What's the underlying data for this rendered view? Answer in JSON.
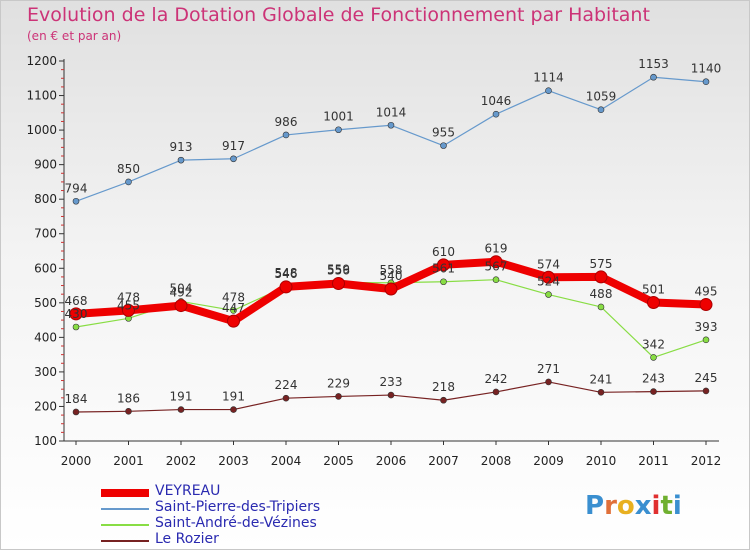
{
  "chart_data": {
    "type": "line",
    "title": "Evolution de la Dotation Globale de Fonctionnement par Habitant",
    "subtitle": "(en € et par an)",
    "x": [
      "2000",
      "2001",
      "2002",
      "2003",
      "2004",
      "2005",
      "2006",
      "2007",
      "2008",
      "2009",
      "2010",
      "2011",
      "2012"
    ],
    "ylim": [
      100,
      1200
    ],
    "yticks": [
      100,
      200,
      300,
      400,
      500,
      600,
      700,
      800,
      900,
      1000,
      1100,
      1200
    ],
    "grid": false,
    "legend_position": "bottom-left",
    "series": [
      {
        "name": "VEYREAU",
        "color": "#ee0000",
        "values": [
          468,
          478,
          492,
          447,
          546,
          556,
          540,
          610,
          619,
          574,
          575,
          501,
          495
        ],
        "labels": [
          "468",
          "478",
          "492",
          "447",
          "546",
          "556",
          "540",
          "610",
          "619",
          "574",
          "575",
          "501",
          "495"
        ]
      },
      {
        "name": "Saint-Pierre-des-Tripiers",
        "color": "#6699cc",
        "values": [
          794,
          850,
          913,
          917,
          986,
          1001,
          1014,
          955,
          1046,
          1114,
          1059,
          1153,
          1140
        ],
        "labels": [
          "794",
          "850",
          "913",
          "917",
          "986",
          "1001",
          "1014",
          "955",
          "1046",
          "1114",
          "1059",
          "1153",
          "1140"
        ]
      },
      {
        "name": "Saint-André-de-Vézines",
        "color": "#88dd44",
        "values": [
          430,
          455,
          504,
          478,
          548,
          559,
          558,
          561,
          567,
          524,
          488,
          342,
          393
        ],
        "labels": [
          "430",
          "455",
          "504",
          "478",
          "548",
          "559",
          "558",
          "561",
          "567",
          "524",
          "488",
          "342",
          "393"
        ]
      },
      {
        "name": "Le Rozier",
        "color": "#772222",
        "values": [
          184,
          186,
          191,
          191,
          224,
          229,
          233,
          218,
          242,
          271,
          241,
          243,
          245
        ],
        "labels": [
          "184",
          "186",
          "191",
          "191",
          "224",
          "229",
          "233",
          "218",
          "242",
          "271",
          "241",
          "243",
          "245"
        ]
      }
    ]
  },
  "logo": {
    "letters": [
      "P",
      "r",
      "o",
      "x",
      "i",
      "t",
      "i"
    ]
  }
}
